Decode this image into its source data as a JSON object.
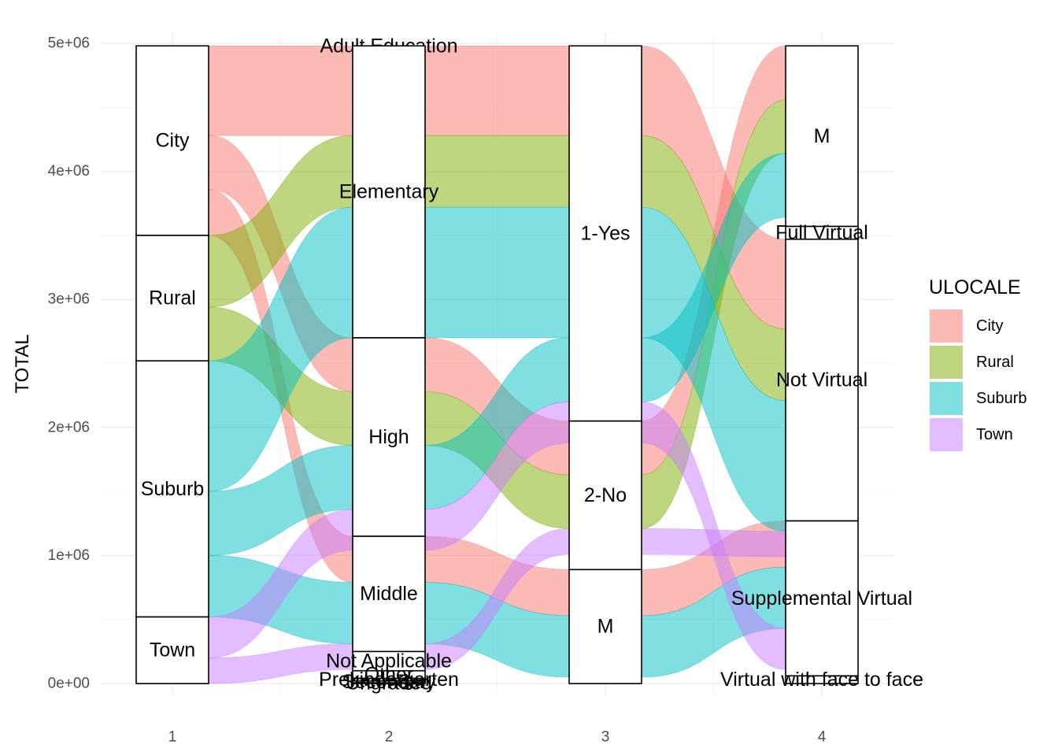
{
  "chart_data": {
    "type": "alluvial",
    "ylabel": "TOTAL",
    "ylim": [
      0,
      5000000
    ],
    "y_ticks": [
      {
        "value": 0,
        "label": "0e+00"
      },
      {
        "value": 1000000,
        "label": "1e+06"
      },
      {
        "value": 2000000,
        "label": "2e+06"
      },
      {
        "value": 3000000,
        "label": "3e+06"
      },
      {
        "value": 4000000,
        "label": "4e+06"
      },
      {
        "value": 5000000,
        "label": "5e+06"
      }
    ],
    "x_ticks": [
      "1",
      "2",
      "3",
      "4"
    ],
    "grid": true,
    "legend": {
      "title": "ULOCALE",
      "placement": "right",
      "items": [
        {
          "label": "City",
          "color": "#F8766D"
        },
        {
          "label": "Rural",
          "color": "#7CAE00"
        },
        {
          "label": "Suburb",
          "color": "#00BFC4"
        },
        {
          "label": "Town",
          "color": "#C77CFF"
        }
      ]
    },
    "axes": [
      {
        "x": 1,
        "strata": [
          {
            "label": "City",
            "value": 1480000
          },
          {
            "label": "Rural",
            "value": 980000
          },
          {
            "label": "Suburb",
            "value": 2000000
          },
          {
            "label": "Town",
            "value": 520000
          }
        ]
      },
      {
        "x": 2,
        "strata": [
          {
            "label": "Adult Education",
            "value": 0
          },
          {
            "label": "Elementary",
            "value": 2280000
          },
          {
            "label": "High",
            "value": 1550000
          },
          {
            "label": "Middle",
            "value": 900000
          },
          {
            "label": "Not Applicable",
            "value": 150000
          },
          {
            "label": "Other",
            "value": 60000
          },
          {
            "label": "Prekindergarten",
            "value": 20000
          },
          {
            "label": "Secondary",
            "value": 15000
          },
          {
            "label": "Ungraded",
            "value": 5000
          }
        ]
      },
      {
        "x": 3,
        "strata": [
          {
            "label": "1-Yes",
            "value": 2930000
          },
          {
            "label": "2-No",
            "value": 1160000
          },
          {
            "label": "M",
            "value": 890000
          }
        ]
      },
      {
        "x": 4,
        "strata": [
          {
            "label": "M",
            "value": 1410000
          },
          {
            "label": "Full Virtual",
            "value": 100000
          },
          {
            "label": "Not Virtual",
            "value": 2200000
          },
          {
            "label": "Supplemental Virtual",
            "value": 1210000
          },
          {
            "label": "Virtual with face to face",
            "value": 60000
          }
        ]
      }
    ],
    "flows": [
      {
        "locale": "City",
        "axis2": "Elementary",
        "axis3": "1-Yes",
        "axis4": "Not Virtual",
        "value": 700000
      },
      {
        "locale": "City",
        "axis2": "High",
        "axis3": "2-No",
        "axis4": "M",
        "value": 420000
      },
      {
        "locale": "City",
        "axis2": "Middle",
        "axis3": "M",
        "axis4": "Supplemental Virtual",
        "value": 360000
      },
      {
        "locale": "Rural",
        "axis2": "Elementary",
        "axis3": "1-Yes",
        "axis4": "Not Virtual",
        "value": 560000
      },
      {
        "locale": "Rural",
        "axis2": "High",
        "axis3": "2-No",
        "axis4": "M",
        "value": 420000
      },
      {
        "locale": "Suburb",
        "axis2": "Elementary",
        "axis3": "1-Yes",
        "axis4": "Not Virtual",
        "value": 1020000
      },
      {
        "locale": "Suburb",
        "axis2": "High",
        "axis3": "1-Yes",
        "axis4": "M",
        "value": 500000
      },
      {
        "locale": "Suburb",
        "axis2": "Middle",
        "axis3": "M",
        "axis4": "Supplemental Virtual",
        "value": 480000
      },
      {
        "locale": "Town",
        "axis2": "High",
        "axis3": "1-Yes",
        "axis4": "Supplemental Virtual",
        "value": 320000
      },
      {
        "locale": "Town",
        "axis2": "Middle",
        "axis3": "2-No",
        "axis4": "Not Virtual",
        "value": 200000
      }
    ]
  }
}
